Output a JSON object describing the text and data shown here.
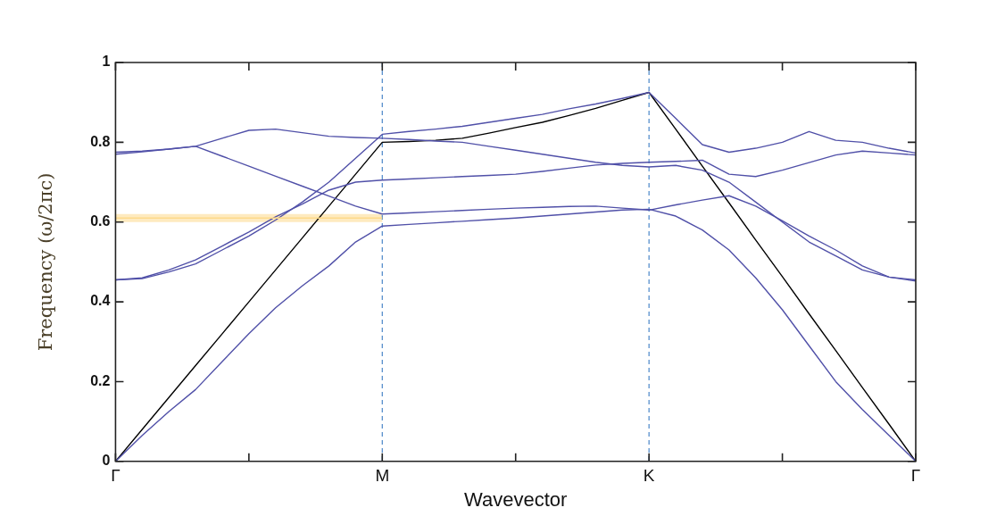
{
  "chart_data": {
    "type": "line",
    "xlabel": "Wavevector",
    "ylabel": "Frequency (ω/2πc)",
    "categories": [
      "Γ",
      null,
      null,
      null,
      null,
      null,
      null,
      null,
      null,
      null,
      "M",
      null,
      null,
      null,
      null,
      null,
      null,
      null,
      null,
      null,
      "K",
      null,
      null,
      null,
      null,
      null,
      null,
      null,
      null,
      null,
      "Γ"
    ],
    "ylim": [
      0,
      1
    ],
    "yticks": [
      0,
      0.2,
      0.4,
      0.6,
      0.8,
      1
    ],
    "series": [
      {
        "color": "#fdd98a",
        "values": [
          0.61,
          0.61,
          0.61,
          0.61,
          0.61,
          0.61,
          0.61,
          0.61,
          0.61,
          0.61,
          0.61,
          null,
          null,
          null,
          null,
          null,
          null,
          null,
          null,
          null,
          null,
          null,
          null,
          null,
          null,
          null,
          null,
          null,
          null,
          null,
          null
        ],
        "lower": [
          0.6,
          0.6,
          0.6,
          0.6,
          0.6,
          0.6,
          0.6,
          0.6,
          0.6,
          0.6,
          0.6,
          null,
          null,
          null,
          null,
          null,
          null,
          null,
          null,
          null,
          null,
          null,
          null,
          null,
          null,
          null,
          null,
          null,
          null,
          null,
          null
        ],
        "upper": [
          0.62,
          0.62,
          0.62,
          0.62,
          0.62,
          0.62,
          0.62,
          0.62,
          0.62,
          0.62,
          0.62,
          null,
          null,
          null,
          null,
          null,
          null,
          null,
          null,
          null,
          null,
          null,
          null,
          null,
          null,
          null,
          null,
          null,
          null,
          null,
          null
        ]
      },
      {
        "color": "#5050a8",
        "values": [
          0,
          0.065,
          0.125,
          0.18,
          0.25,
          0.32,
          0.385,
          0.44,
          0.49,
          0.55,
          0.59,
          0.594,
          0.598,
          0.602,
          0.606,
          0.61,
          0.615,
          0.62,
          0.625,
          0.63,
          0.632,
          0.615,
          0.58,
          0.53,
          0.46,
          0.38,
          0.29,
          0.2,
          0.13,
          0.065,
          0
        ]
      },
      {
        "color": "#5050a8",
        "values": [
          0.775,
          0.778,
          0.783,
          0.79,
          0.765,
          0.74,
          0.715,
          0.69,
          0.665,
          0.64,
          0.62,
          0.623,
          0.626,
          0.629,
          0.632,
          0.635,
          0.637,
          0.639,
          0.64,
          0.635,
          0.63,
          0.643,
          0.655,
          0.666,
          0.64,
          0.603,
          0.565,
          0.53,
          0.49,
          0.462,
          0.452
        ]
      },
      {
        "color": "#5050a8",
        "values": [
          0.455,
          0.46,
          0.48,
          0.505,
          0.54,
          0.575,
          0.613,
          0.645,
          0.68,
          0.7,
          0.705,
          0.708,
          0.711,
          0.714,
          0.717,
          0.72,
          0.727,
          0.735,
          0.743,
          0.747,
          0.75,
          0.752,
          0.755,
          0.72,
          0.714,
          0.73,
          0.749,
          0.768,
          0.778,
          0.773,
          0.768
        ]
      },
      {
        "color": "#5050a8",
        "values": [
          0.455,
          0.458,
          0.475,
          0.495,
          0.53,
          0.565,
          0.605,
          0.65,
          0.7,
          0.76,
          0.82,
          0.827,
          0.833,
          0.84,
          0.85,
          0.86,
          0.87,
          0.884,
          0.896,
          0.91,
          0.925,
          0.86,
          0.794,
          0.775,
          0.785,
          0.8,
          0.827,
          0.805,
          0.8,
          0.785,
          0.773
        ]
      },
      {
        "color": "#5050a8",
        "values": [
          0.77,
          0.776,
          0.783,
          0.79,
          0.81,
          0.83,
          0.833,
          0.824,
          0.815,
          0.812,
          0.81,
          0.807,
          0.803,
          0.8,
          0.79,
          0.78,
          0.77,
          0.76,
          0.75,
          0.742,
          0.738,
          0.742,
          0.73,
          0.7,
          0.65,
          0.6,
          0.55,
          0.515,
          0.48,
          0.462,
          0.455
        ]
      },
      {
        "color": "#000000",
        "values": [
          0,
          0.08,
          0.16,
          0.24,
          0.32,
          0.4,
          0.48,
          0.56,
          0.64,
          0.72,
          0.8,
          0.802,
          0.805,
          0.81,
          0.823,
          0.837,
          0.85,
          0.867,
          0.885,
          0.905,
          0.925,
          0.833,
          0.74,
          0.648,
          0.555,
          0.463,
          0.37,
          0.278,
          0.185,
          0.093,
          0
        ]
      }
    ],
    "ref_lines": [
      {
        "axis": "x",
        "value": "M",
        "label": null,
        "color": "#4a86c8",
        "line_style": "dashed"
      },
      {
        "axis": "x",
        "value": "K",
        "label": null,
        "color": "#4a86c8",
        "line_style": "dashed"
      }
    ]
  }
}
